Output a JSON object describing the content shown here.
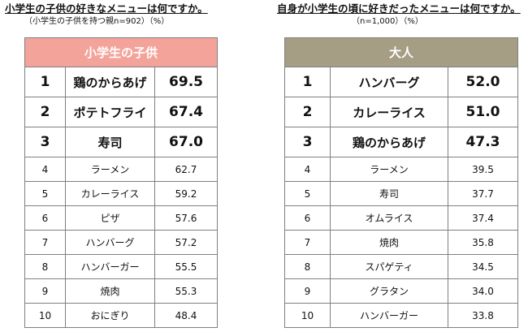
{
  "chart_data": [
    {
      "type": "table",
      "title": "小学生の子供の好きなメニューは何ですか。",
      "subtitle": "（小学生の子供を持つ親n=902）（%）",
      "header": "小学生の子供",
      "colors": {
        "header_bg": "#f4a39a",
        "header_text": "#ffffff",
        "border": "#7f7f7f"
      },
      "rows": [
        {
          "rank": "1",
          "item": "鶏のからあげ",
          "value": "69.5"
        },
        {
          "rank": "2",
          "item": "ポテトフライ",
          "value": "67.4"
        },
        {
          "rank": "3",
          "item": "寿司",
          "value": "67.0"
        },
        {
          "rank": "4",
          "item": "ラーメン",
          "value": "62.7"
        },
        {
          "rank": "5",
          "item": "カレーライス",
          "value": "59.2"
        },
        {
          "rank": "6",
          "item": "ピザ",
          "value": "57.6"
        },
        {
          "rank": "7",
          "item": "ハンバーグ",
          "value": "57.2"
        },
        {
          "rank": "8",
          "item": "ハンバーガー",
          "value": "55.5"
        },
        {
          "rank": "9",
          "item": "焼肉",
          "value": "55.3"
        },
        {
          "rank": "10",
          "item": "おにぎり",
          "value": "48.4"
        }
      ]
    },
    {
      "type": "table",
      "title": "自身が小学生の頃に好きだったメニューは何ですか。",
      "subtitle": "（n=1,000）（%）",
      "header": "大人",
      "colors": {
        "header_bg": "#a59e84",
        "header_text": "#ffffff",
        "border": "#7f7f7f"
      },
      "rows": [
        {
          "rank": "1",
          "item": "ハンバーグ",
          "value": "52.0"
        },
        {
          "rank": "2",
          "item": "カレーライス",
          "value": "51.0"
        },
        {
          "rank": "3",
          "item": "鶏のからあげ",
          "value": "47.3"
        },
        {
          "rank": "4",
          "item": "ラーメン",
          "value": "39.5"
        },
        {
          "rank": "5",
          "item": "寿司",
          "value": "37.7"
        },
        {
          "rank": "6",
          "item": "オムライス",
          "value": "37.4"
        },
        {
          "rank": "7",
          "item": "焼肉",
          "value": "35.8"
        },
        {
          "rank": "8",
          "item": "スパゲティ",
          "value": "34.5"
        },
        {
          "rank": "9",
          "item": "グラタン",
          "value": "34.0"
        },
        {
          "rank": "10",
          "item": "ハンバーガー",
          "value": "33.8"
        }
      ]
    }
  ]
}
